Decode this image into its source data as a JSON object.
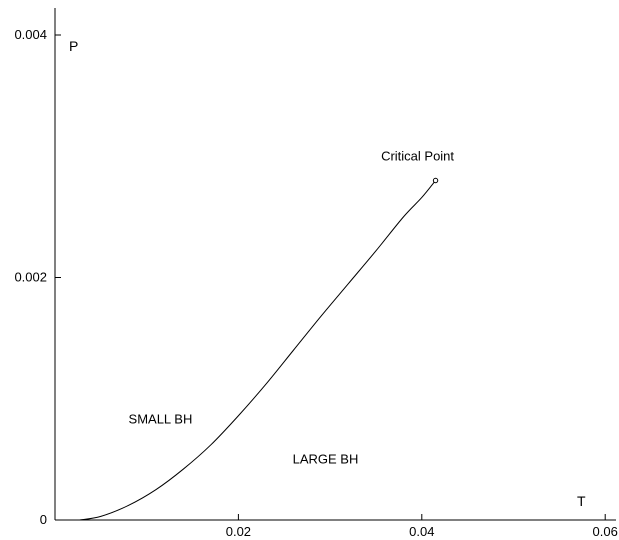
{
  "chart_data": {
    "type": "line",
    "title": "",
    "xlabel": "T",
    "ylabel": "P",
    "xlim": [
      0,
      0.062
    ],
    "ylim": [
      0,
      0.0042
    ],
    "x_ticks": [
      {
        "value": 0.02,
        "label": "0.02"
      },
      {
        "value": 0.04,
        "label": "0.04"
      },
      {
        "value": 0.06,
        "label": "0.06"
      }
    ],
    "y_ticks": [
      {
        "value": 0,
        "label": "0"
      },
      {
        "value": 0.002,
        "label": "0.002"
      },
      {
        "value": 0.004,
        "label": "0.004"
      }
    ],
    "grid": false,
    "series": [
      {
        "x": [
          0.0027,
          0.005,
          0.008,
          0.011,
          0.014,
          0.017,
          0.02,
          0.023,
          0.026,
          0.029,
          0.032,
          0.035,
          0.038,
          0.04,
          0.0415
        ],
        "y": [
          0.0,
          3e-05,
          0.00012,
          0.00025,
          0.00042,
          0.00062,
          0.00086,
          0.00112,
          0.0014,
          0.00168,
          0.00195,
          0.00222,
          0.0025,
          0.00266,
          0.0028
        ]
      }
    ],
    "critical_point": {
      "x": 0.0415,
      "y": 0.0028,
      "label": "Critical Point"
    },
    "annotations": [
      {
        "text": "SMALL BH",
        "x": 0.0115,
        "y": 0.00083
      },
      {
        "text": "LARGE BH",
        "x": 0.0295,
        "y": 0.0005
      }
    ],
    "color": "#000000"
  }
}
